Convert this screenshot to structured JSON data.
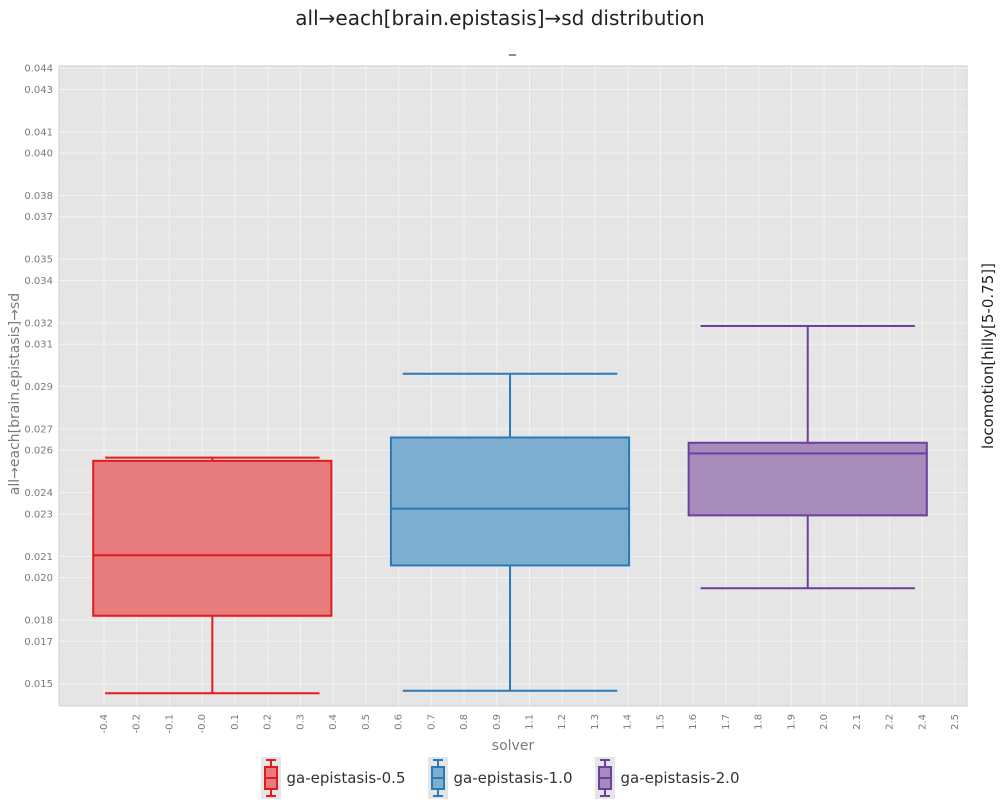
{
  "title": "all→each[brain.epistasis]→sd distribution",
  "subtitle": "_",
  "facet_label": "locomotion[hilly[5-0.75]]",
  "chart_data": {
    "type": "box",
    "title": "all→each[brain.epistasis]→sd distribution",
    "subtitle": "_",
    "xlabel": "solver",
    "ylabel": "all→each[brain.epistasis]→sd",
    "facet": "locomotion[hilly[5-0.75]]",
    "ylim": [
      0.01395,
      0.0441
    ],
    "xlim": [
      -0.515,
      2.535
    ],
    "grid": true,
    "legend_position": "bottom",
    "y_ticks": [
      "0.015",
      "0.017",
      "0.018",
      "0.020",
      "0.021",
      "0.023",
      "0.024",
      "0.026",
      "0.027",
      "0.029",
      "0.031",
      "0.032",
      "0.034",
      "0.035",
      "0.037",
      "0.038",
      "0.040",
      "0.041",
      "0.043",
      "0.044"
    ],
    "x_ticks": [
      "-0.4",
      "-0.2",
      "-0.1",
      "-0.0",
      "0.1",
      "0.2",
      "0.3",
      "0.4",
      "0.5",
      "0.6",
      "0.7",
      "0.8",
      "0.9",
      "1.1",
      "1.2",
      "1.3",
      "1.4",
      "1.5",
      "1.6",
      "1.7",
      "1.8",
      "1.9",
      "2.0",
      "2.1",
      "2.2",
      "2.4",
      "2.5"
    ],
    "series": [
      {
        "name": "ga-epistasis-0.5",
        "color": "#e41a1c",
        "fill": "#e77c7c",
        "x": 0,
        "min": 0.01455,
        "q1": 0.0182,
        "median": 0.02105,
        "q3": 0.0255,
        "max": 0.02565
      },
      {
        "name": "ga-epistasis-1.0",
        "color": "#2a7ab8",
        "fill": "#7eaecf",
        "x": 1,
        "min": 0.01467,
        "q1": 0.02057,
        "median": 0.02325,
        "q3": 0.0266,
        "max": 0.0296
      },
      {
        "name": "ga-epistasis-2.0",
        "color": "#6d3fa0",
        "fill": "#a58cbb",
        "x": 2,
        "min": 0.0195,
        "q1": 0.02293,
        "median": 0.02585,
        "q3": 0.02635,
        "max": 0.03185
      }
    ]
  }
}
